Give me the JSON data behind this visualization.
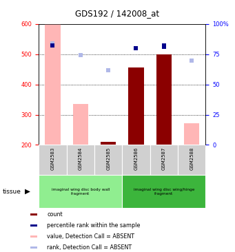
{
  "title": "GDS192 / 142008_at",
  "samples": [
    "GSM2583",
    "GSM2584",
    "GSM2585",
    "GSM2586",
    "GSM2587",
    "GSM2588"
  ],
  "ylim_left": [
    200,
    600
  ],
  "ylim_right": [
    0,
    100
  ],
  "yticks_left": [
    200,
    300,
    400,
    500,
    600
  ],
  "yticks_right": [
    0,
    25,
    50,
    75,
    100
  ],
  "bar_values": [
    600,
    335,
    210,
    455,
    500,
    272
  ],
  "bar_absent": [
    true,
    true,
    false,
    false,
    false,
    true
  ],
  "rank_values_left": [
    535,
    498,
    448,
    520,
    525,
    478
  ],
  "rank_absent": [
    true,
    true,
    true,
    false,
    false,
    true
  ],
  "rank_percentile_right": [
    82,
    null,
    null,
    80,
    82,
    null
  ],
  "color_bar_present": "#8B0000",
  "color_bar_absent": "#FFB6B6",
  "color_rank_present": "#00008B",
  "color_rank_absent": "#B0B8E8",
  "tissue_groups": [
    {
      "label": "imaginal wing disc body wall\nfragment",
      "start": 0,
      "end": 3,
      "color": "#90EE90"
    },
    {
      "label": "imaginal wing disc wing/hinge\nfragment",
      "start": 3,
      "end": 6,
      "color": "#3CB53C"
    }
  ],
  "legend": [
    {
      "color": "#8B0000",
      "label": "count"
    },
    {
      "color": "#00008B",
      "label": "percentile rank within the sample"
    },
    {
      "color": "#FFB6B6",
      "label": "value, Detection Call = ABSENT"
    },
    {
      "color": "#B0B8E8",
      "label": "rank, Detection Call = ABSENT"
    }
  ],
  "bar_width": 0.55,
  "marker_size": 4
}
